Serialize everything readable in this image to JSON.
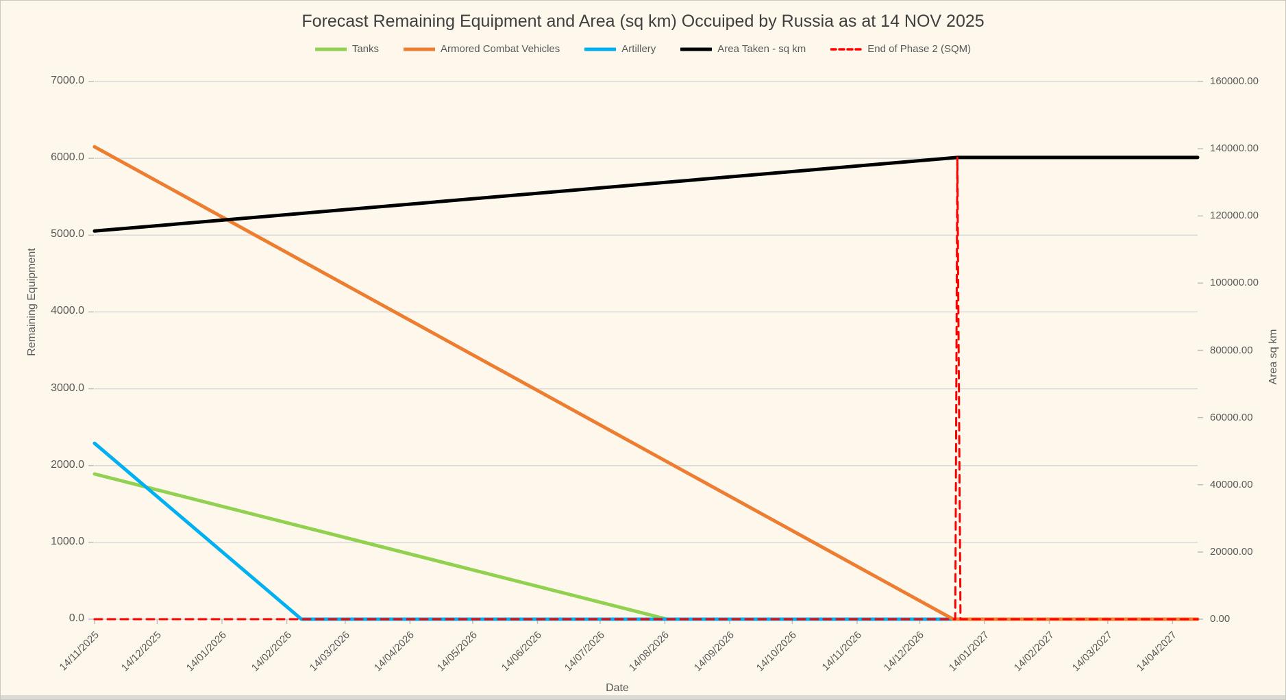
{
  "chart_data": {
    "type": "line",
    "title": "Forecast Remaining Equipment and Area (sq km) Occuiped by Russia as at 14 NOV 2025",
    "xlabel": "Date",
    "ylabel_left": "Remaining Equipment",
    "ylabel_right": "Area sq km",
    "legend_position": "top",
    "grid": true,
    "colors": {
      "background": "#FDF8EB",
      "gridline": "#D9D9D9",
      "tick": "#BFBFBF",
      "text": "#595959",
      "title_text": "#3F3F3F"
    },
    "x_axis": {
      "start_date": "14/11/2025",
      "max_day": 528,
      "ticks": [
        {
          "label": "14/11/2025",
          "day": 0
        },
        {
          "label": "14/12/2025",
          "day": 30
        },
        {
          "label": "14/01/2026",
          "day": 61
        },
        {
          "label": "14/02/2026",
          "day": 92
        },
        {
          "label": "14/03/2026",
          "day": 120
        },
        {
          "label": "14/04/2026",
          "day": 151
        },
        {
          "label": "14/05/2026",
          "day": 181
        },
        {
          "label": "14/06/2026",
          "day": 212
        },
        {
          "label": "14/07/2026",
          "day": 242
        },
        {
          "label": "14/08/2026",
          "day": 273
        },
        {
          "label": "14/09/2026",
          "day": 304
        },
        {
          "label": "14/10/2026",
          "day": 334
        },
        {
          "label": "14/11/2026",
          "day": 365
        },
        {
          "label": "14/12/2026",
          "day": 395
        },
        {
          "label": "14/01/2027",
          "day": 426
        },
        {
          "label": "14/02/2027",
          "day": 457
        },
        {
          "label": "14/03/2027",
          "day": 485
        },
        {
          "label": "14/04/2027",
          "day": 516
        }
      ]
    },
    "y_axis_left": {
      "min": 0,
      "max": 7000,
      "ticks": [
        {
          "label": "0.0",
          "value": 0
        },
        {
          "label": "1000.0",
          "value": 1000
        },
        {
          "label": "2000.0",
          "value": 2000
        },
        {
          "label": "3000.0",
          "value": 3000
        },
        {
          "label": "4000.0",
          "value": 4000
        },
        {
          "label": "5000.0",
          "value": 5000
        },
        {
          "label": "6000.0",
          "value": 6000
        },
        {
          "label": "7000.0",
          "value": 7000
        }
      ]
    },
    "y_axis_right": {
      "min": 0,
      "max": 160000,
      "ticks": [
        {
          "label": "0.00",
          "value": 0
        },
        {
          "label": "20000.00",
          "value": 20000
        },
        {
          "label": "40000.00",
          "value": 40000
        },
        {
          "label": "60000.00",
          "value": 60000
        },
        {
          "label": "80000.00",
          "value": 80000
        },
        {
          "label": "100000.00",
          "value": 100000
        },
        {
          "label": "120000.00",
          "value": 120000
        },
        {
          "label": "140000.00",
          "value": 140000
        },
        {
          "label": "160000.00",
          "value": 160000
        }
      ]
    },
    "series": [
      {
        "name": "Tanks",
        "axis": "left",
        "color": "#92D050",
        "dash": false,
        "width": 5,
        "points": [
          [
            0,
            1890
          ],
          [
            274,
            0
          ],
          [
            528,
            0
          ]
        ]
      },
      {
        "name": "Artillery",
        "axis": "left",
        "color": "#00B0F0",
        "dash": false,
        "width": 5,
        "points": [
          [
            0,
            2290
          ],
          [
            99,
            0
          ],
          [
            528,
            0
          ]
        ]
      },
      {
        "name": "Armored Combat Vehicles",
        "axis": "left",
        "color": "#ED7D31",
        "dash": false,
        "width": 5,
        "points": [
          [
            0,
            6150
          ],
          [
            411,
            0
          ],
          [
            528,
            0
          ]
        ]
      },
      {
        "name": "Area Taken - sq km",
        "axis": "right",
        "color": "#000000",
        "dash": false,
        "width": 5,
        "points": [
          [
            0,
            115500
          ],
          [
            413,
            137400
          ],
          [
            528,
            137400
          ]
        ]
      },
      {
        "name": "End of Phase 2 (SQM)",
        "axis": "right",
        "color": "#FF0000",
        "dash": true,
        "width": 3,
        "points": [
          [
            0,
            0
          ],
          [
            412,
            0
          ],
          [
            413,
            137400
          ],
          [
            414.5,
            0
          ],
          [
            528,
            0
          ]
        ]
      }
    ],
    "annotations": {
      "phase2_spike_date": "01/01/2027",
      "area_start_value": 115500,
      "area_end_value": 137400
    }
  }
}
